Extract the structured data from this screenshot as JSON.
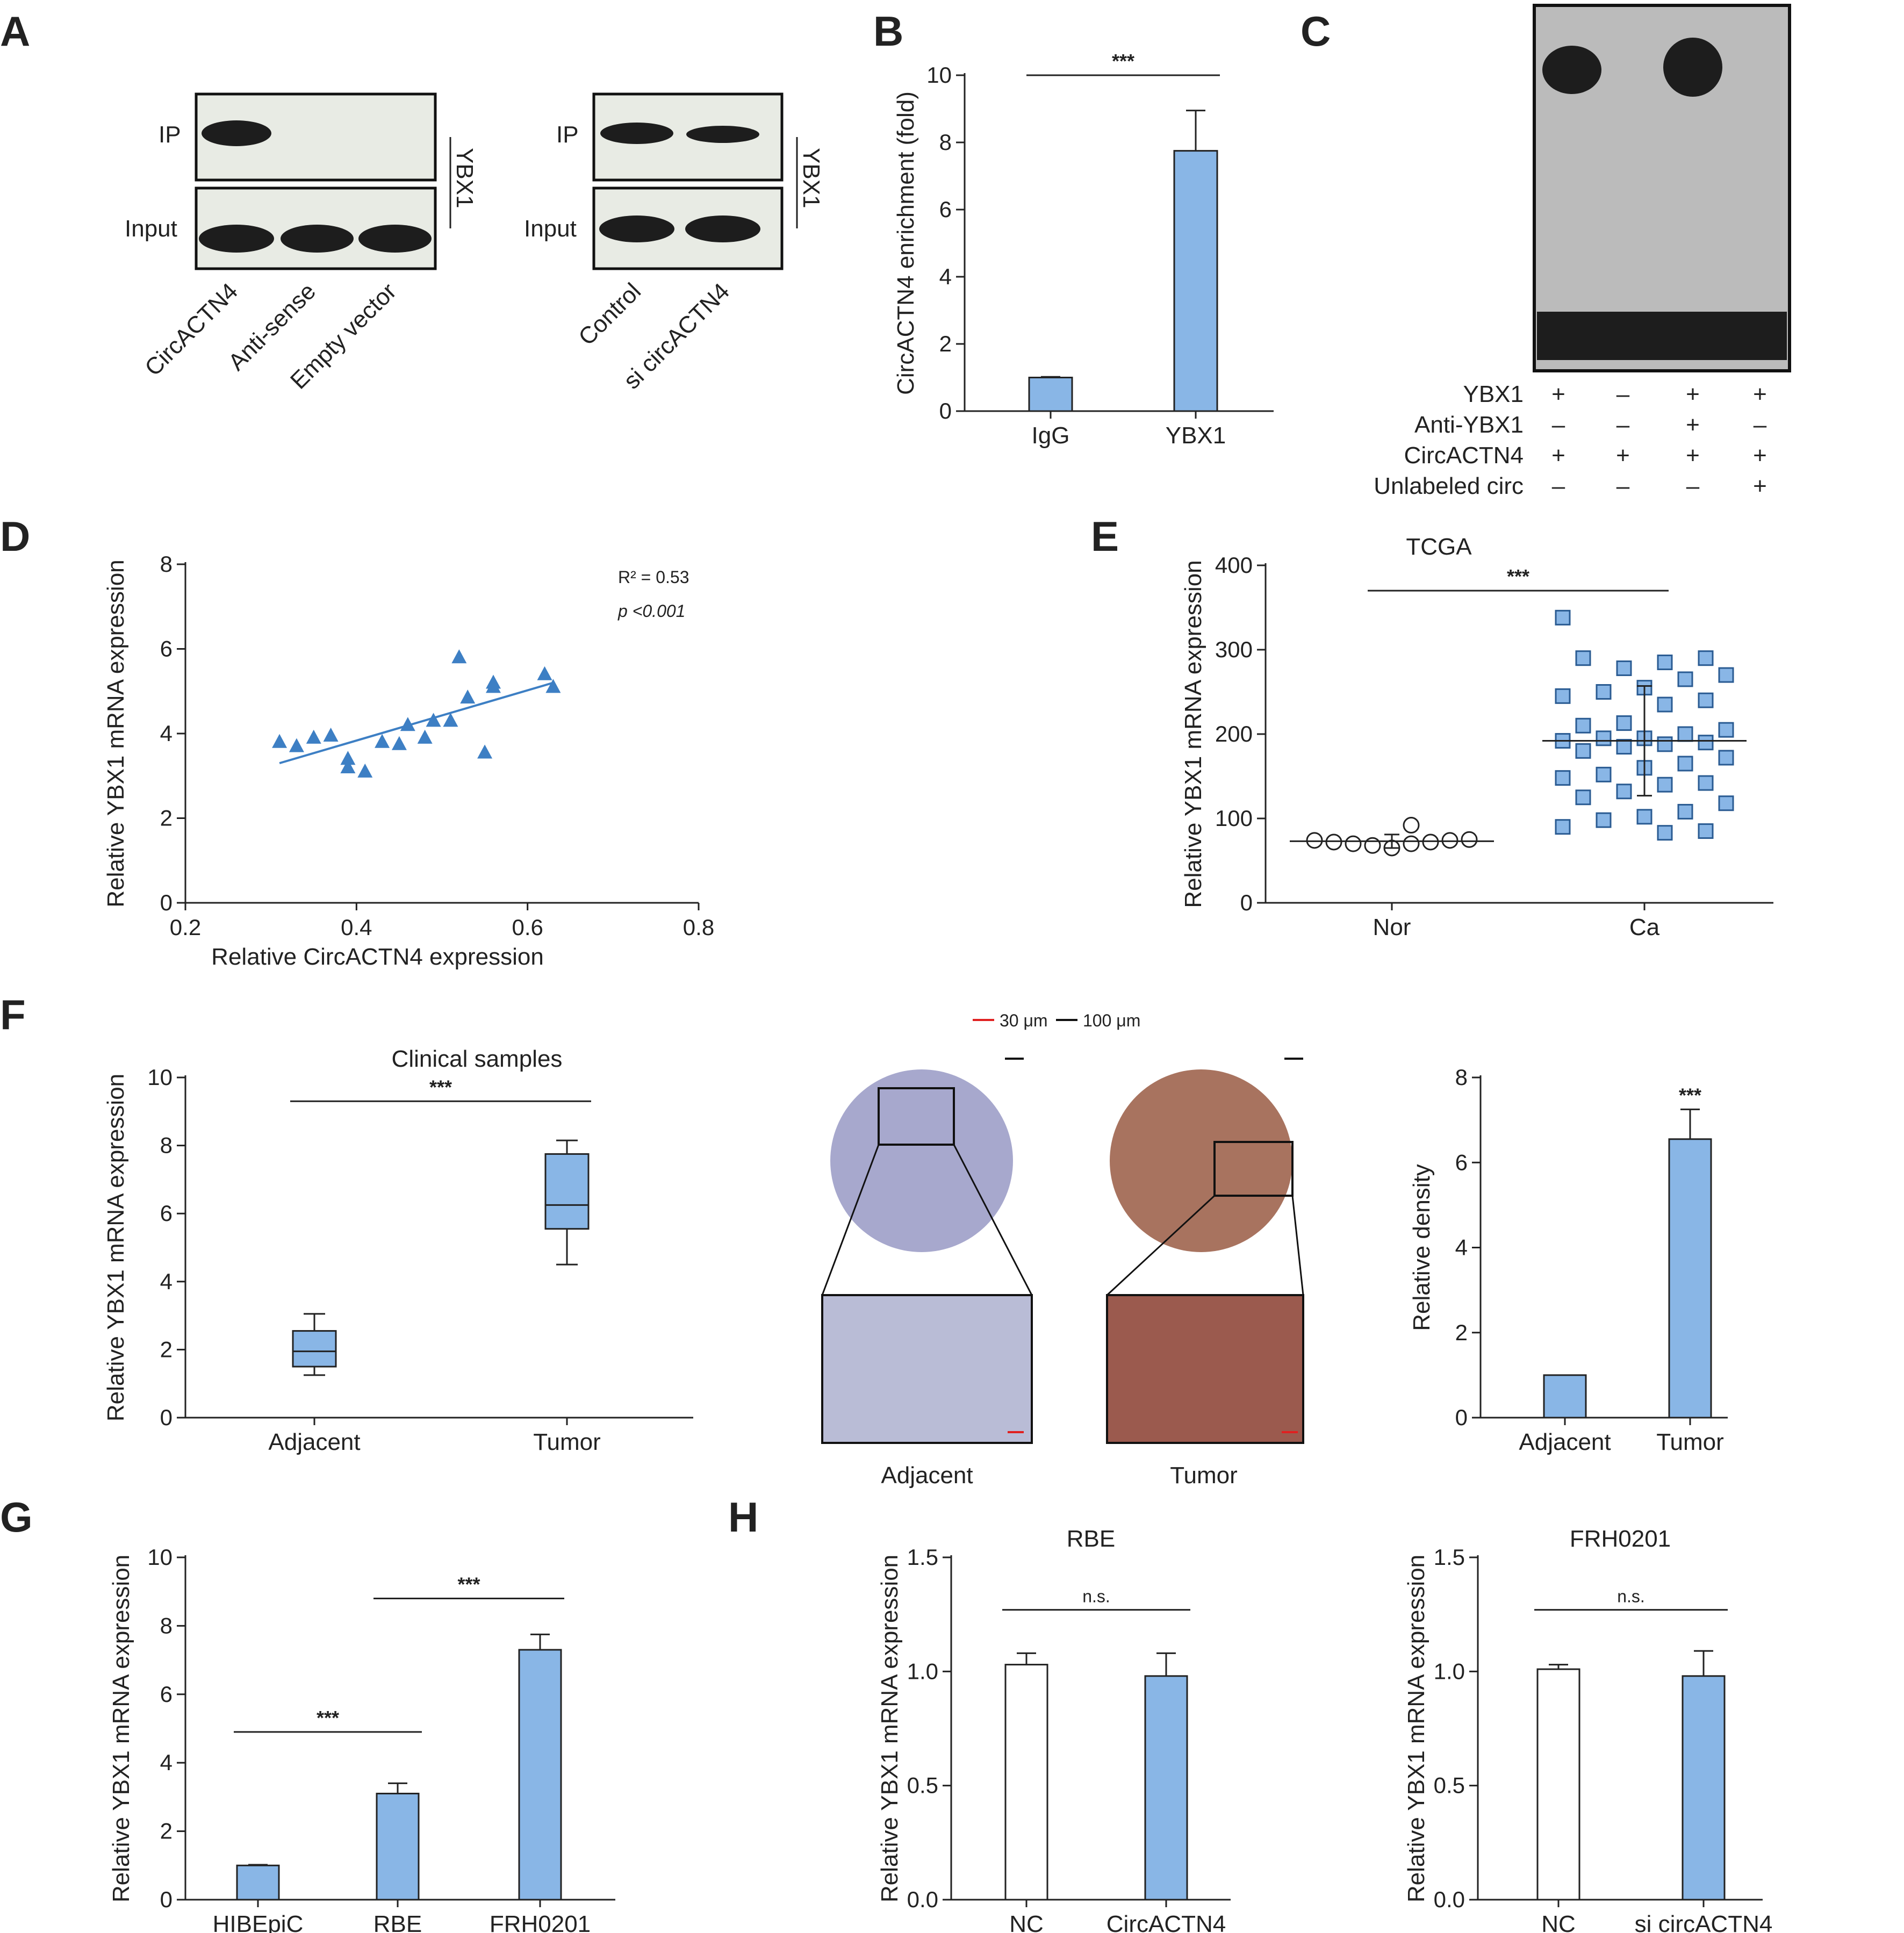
{
  "panels": {
    "A": "A",
    "B": "B",
    "C": "C",
    "D": "D",
    "E": "E",
    "F": "F",
    "G": "G",
    "H": "H"
  },
  "colors": {
    "bar": "#89b6e6",
    "marker": "#3d7fc4",
    "axis": "#222222",
    "scale_red": "#e02020"
  },
  "panelA": {
    "row_ip": "IP",
    "row_input": "Input",
    "protein": "YBX1",
    "left_lanes": [
      "CircACTN4",
      "Anti-sense",
      "Empty vector"
    ],
    "right_lanes": [
      "Control",
      "si circACTN4"
    ]
  },
  "panelC": {
    "rows": [
      {
        "label": "YBX1",
        "signs": [
          "+",
          "–",
          "+",
          "+"
        ]
      },
      {
        "label": "Anti-YBX1",
        "signs": [
          "–",
          "–",
          "+",
          "–"
        ]
      },
      {
        "label": "CircACTN4",
        "signs": [
          "+",
          "+",
          "+",
          "+"
        ]
      },
      {
        "label": "Unlabeled circ",
        "signs": [
          "–",
          "–",
          "–",
          "+"
        ]
      }
    ]
  },
  "panelF": {
    "scale_text_red": "30 μm",
    "scale_text_black": "100 μm",
    "ihc_labels": [
      "Adjacent",
      "Tumor"
    ]
  },
  "chart_data": [
    {
      "id": "B",
      "type": "bar",
      "categories": [
        "IgG",
        "YBX1"
      ],
      "values": [
        1.0,
        7.75
      ],
      "errors": [
        0.02,
        1.2
      ],
      "ylabel": "CircACTN4 enrichment (fold)",
      "ylim": [
        0,
        10
      ],
      "yticks": [
        0,
        2,
        4,
        6,
        8,
        10
      ],
      "significance": [
        {
          "from": 0,
          "to": 1,
          "label": "***",
          "y": 10
        }
      ]
    },
    {
      "id": "D",
      "type": "scatter",
      "xlabel": "Relative CircACTN4 expression",
      "ylabel": "Relative YBX1 mRNA expression",
      "xlim": [
        0.2,
        0.8
      ],
      "ylim": [
        0,
        8
      ],
      "xticks": [
        0.2,
        0.4,
        0.6,
        0.8
      ],
      "yticks": [
        0,
        2,
        4,
        6,
        8
      ],
      "x": [
        0.31,
        0.33,
        0.35,
        0.37,
        0.39,
        0.39,
        0.41,
        0.43,
        0.45,
        0.46,
        0.48,
        0.49,
        0.51,
        0.52,
        0.53,
        0.55,
        0.56,
        0.56,
        0.62,
        0.63
      ],
      "y": [
        3.8,
        3.7,
        3.9,
        3.95,
        3.4,
        3.2,
        3.1,
        3.8,
        3.75,
        4.2,
        3.9,
        4.3,
        4.3,
        5.8,
        4.85,
        3.55,
        5.2,
        5.1,
        5.4,
        5.1
      ],
      "fit": {
        "x": [
          0.31,
          0.63
        ],
        "y": [
          3.3,
          5.2
        ]
      },
      "annotations": [
        "R² = 0.53",
        "p <0.001"
      ]
    },
    {
      "id": "E",
      "type": "scatter",
      "title": "TCGA",
      "categories": [
        "Nor",
        "Ca"
      ],
      "ylabel": "Relative YBX1 mRNA expression",
      "ylim": [
        0,
        400
      ],
      "yticks": [
        0,
        100,
        200,
        300,
        400
      ],
      "series": [
        {
          "name": "Nor",
          "values": [
            74,
            72,
            70,
            68,
            65,
            70,
            72,
            74,
            75,
            92
          ]
        },
        {
          "name": "Ca",
          "values": [
            338,
            290,
            285,
            278,
            290,
            270,
            265,
            255,
            250,
            245,
            240,
            235,
            213,
            210,
            205,
            200,
            195,
            195,
            192,
            190,
            188,
            185,
            180,
            172,
            165,
            160,
            152,
            148,
            142,
            140,
            132,
            125,
            118,
            108,
            102,
            98,
            90,
            85,
            83
          ]
        }
      ],
      "means": [
        73,
        192
      ],
      "sd": [
        8,
        65
      ],
      "significance": [
        {
          "from": 0,
          "to": 1,
          "label": "***",
          "y": 370
        }
      ]
    },
    {
      "id": "F1",
      "type": "box",
      "title": "Clinical samples",
      "categories": [
        "Adjacent",
        "Tumor"
      ],
      "ylabel": "Relative YBX1 mRNA expression",
      "ylim": [
        0,
        10
      ],
      "yticks": [
        0,
        2,
        4,
        6,
        8,
        10
      ],
      "boxes": [
        {
          "min": 1.25,
          "q1": 1.5,
          "median": 1.95,
          "q3": 2.55,
          "max": 3.05
        },
        {
          "min": 4.5,
          "q1": 5.55,
          "median": 6.25,
          "q3": 7.75,
          "max": 8.15
        }
      ],
      "significance": [
        {
          "from": 0,
          "to": 1,
          "label": "***",
          "y": 9.3
        }
      ]
    },
    {
      "id": "F2",
      "type": "bar",
      "categories": [
        "Adjacent",
        "Tumor"
      ],
      "values": [
        1.0,
        6.55
      ],
      "errors": [
        0,
        0.7
      ],
      "ylabel": "Relative density",
      "ylim": [
        0,
        8
      ],
      "yticks": [
        0,
        2,
        4,
        6,
        8
      ],
      "star_labels": [
        "",
        "***"
      ]
    },
    {
      "id": "G",
      "type": "bar",
      "categories": [
        "HIBEpiC",
        "RBE",
        "FRH0201"
      ],
      "values": [
        1.0,
        3.1,
        7.3
      ],
      "errors": [
        0.02,
        0.3,
        0.45
      ],
      "ylabel": "Relative YBX1 mRNA expression",
      "ylim": [
        0,
        10
      ],
      "yticks": [
        0,
        2,
        4,
        6,
        8,
        10
      ],
      "significance": [
        {
          "from": 0,
          "to": 1,
          "label": "***",
          "y": 4.9
        },
        {
          "from": 1,
          "to": 2,
          "label": "***",
          "y": 8.8
        }
      ]
    },
    {
      "id": "H1",
      "type": "bar",
      "title": "RBE",
      "categories": [
        "NC",
        "CircACTN4"
      ],
      "values": [
        1.03,
        0.98
      ],
      "errors": [
        0.05,
        0.1
      ],
      "ylabel": "Relative YBX1 mRNA expression",
      "ylim": [
        0,
        1.5
      ],
      "yticks": [
        "0.0",
        "0.5",
        "1.0",
        "1.5"
      ],
      "fills": [
        "white",
        "blue"
      ],
      "significance": [
        {
          "from": 0,
          "to": 1,
          "label": "n.s.",
          "y": 1.27
        }
      ]
    },
    {
      "id": "H2",
      "type": "bar",
      "title": "FRH0201",
      "categories": [
        "NC",
        "si circACTN4"
      ],
      "values": [
        1.01,
        0.98
      ],
      "errors": [
        0.02,
        0.11
      ],
      "ylabel": "Relative YBX1 mRNA expression",
      "ylim": [
        0,
        1.5
      ],
      "yticks": [
        "0.0",
        "0.5",
        "1.0",
        "1.5"
      ],
      "fills": [
        "white",
        "blue"
      ],
      "significance": [
        {
          "from": 0,
          "to": 1,
          "label": "n.s.",
          "y": 1.27
        }
      ]
    }
  ]
}
